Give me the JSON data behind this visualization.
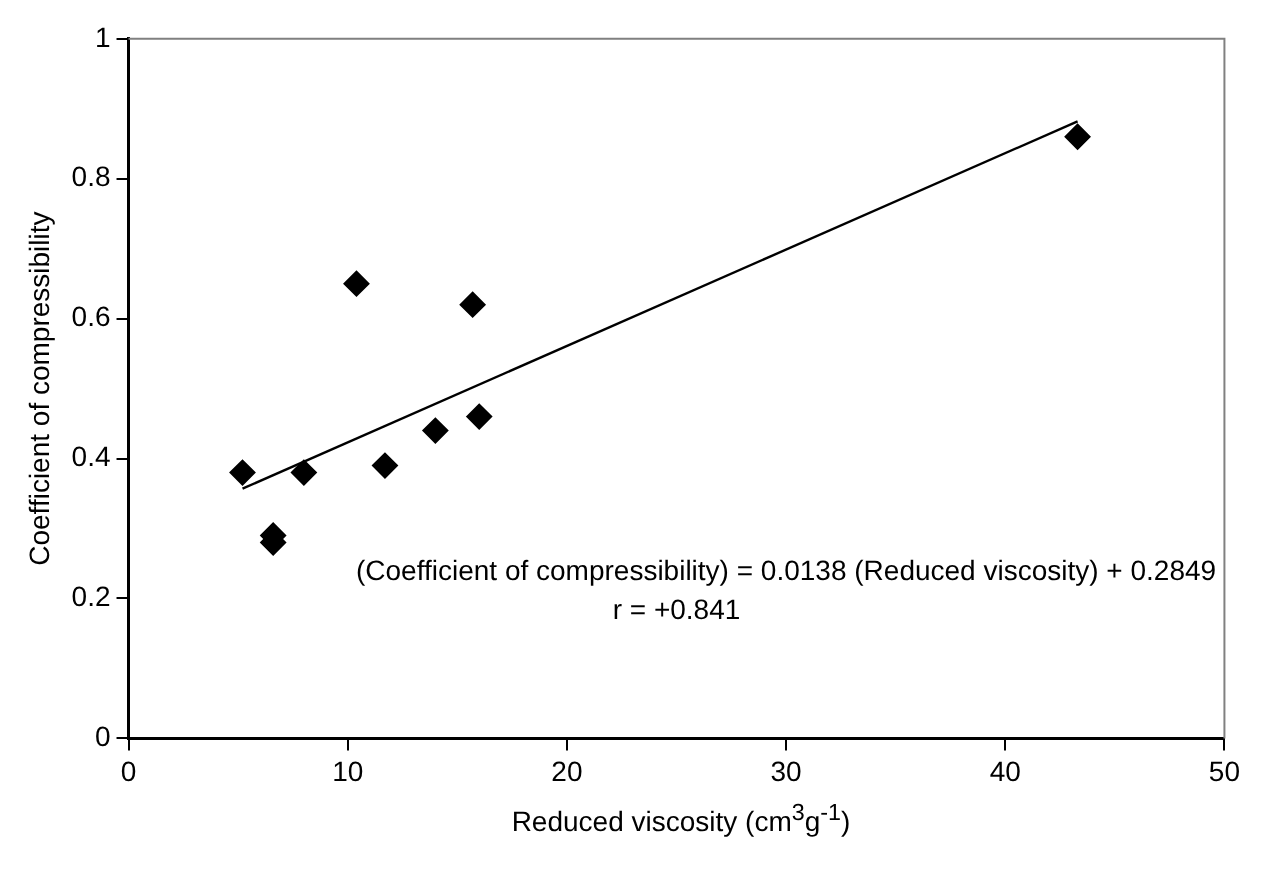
{
  "chart_data": {
    "type": "scatter",
    "xlabel": "Reduced viscosity (cm$^{3}$g$^{-1}$)",
    "ylabel": "Coefficient of compressibility",
    "x": [
      5.2,
      6.6,
      6.6,
      8.0,
      10.4,
      11.7,
      14.0,
      15.7,
      16.0,
      43.3
    ],
    "series": [
      {
        "color": "#000000",
        "marker": "diamond",
        "values": [
          0.38,
          0.29,
          0.28,
          0.38,
          0.65,
          0.39,
          0.44,
          0.62,
          0.46,
          0.86
        ]
      },
      {
        "type": "line",
        "color": "#000000",
        "marker": "none",
        "x": [
          5.2,
          43.3
        ],
        "values": [
          0.357,
          0.882
        ]
      }
    ],
    "xlim": [
      0,
      50
    ],
    "xticks": [
      0,
      10,
      20,
      30,
      40,
      50
    ],
    "ylim": [
      0,
      1
    ],
    "yticks": [
      0,
      0.2,
      0.4,
      0.6,
      0.8,
      1
    ],
    "grid": false,
    "legend": false,
    "annotations": [
      "(Coefficient of compressibility) = 0.0138 (Reduced viscosity) + 0.2849",
      "r = +0.841"
    ]
  }
}
